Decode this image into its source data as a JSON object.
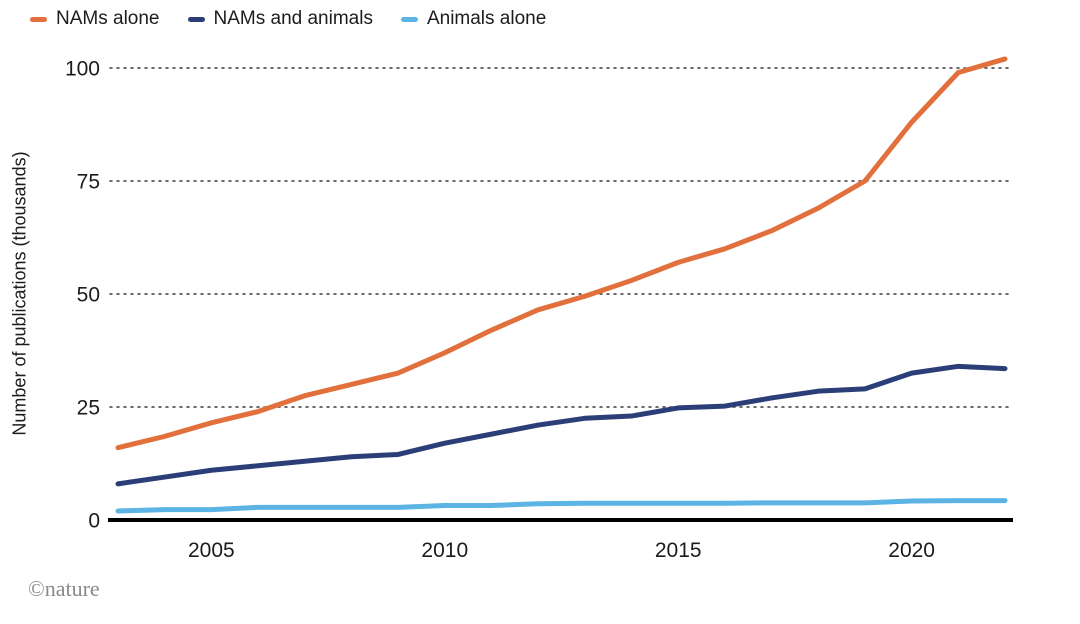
{
  "chart_data": {
    "type": "line",
    "title": "",
    "xlabel": "",
    "ylabel": "Number of publications (thousands)",
    "x": [
      2003,
      2004,
      2005,
      2006,
      2007,
      2008,
      2009,
      2010,
      2011,
      2012,
      2013,
      2014,
      2015,
      2016,
      2017,
      2018,
      2019,
      2020,
      2021,
      2022
    ],
    "series": [
      {
        "name": "NAMs alone",
        "color": "#e2703c",
        "values": [
          16,
          18.5,
          21.5,
          24,
          27.5,
          30,
          32.5,
          37,
          42,
          46.5,
          49.5,
          53,
          57,
          60,
          64,
          69,
          75,
          88,
          99,
          102
        ]
      },
      {
        "name": "NAMs and animals",
        "color": "#2c3e77",
        "values": [
          8,
          9.5,
          11,
          12,
          13,
          14,
          14.5,
          17,
          19,
          21,
          22.5,
          23,
          24.8,
          25.2,
          27,
          28.5,
          29,
          32.5,
          34,
          33.5
        ]
      },
      {
        "name": "Animals alone",
        "color": "#5cb4e4",
        "values": [
          2,
          2.3,
          2.3,
          2.8,
          2.8,
          2.8,
          2.8,
          3.2,
          3.2,
          3.6,
          3.7,
          3.7,
          3.7,
          3.7,
          3.8,
          3.8,
          3.8,
          4.2,
          4.3,
          4.3
        ]
      }
    ],
    "ylim": [
      0,
      100
    ],
    "yticks": [
      0,
      25,
      50,
      75,
      100
    ],
    "xticks": [
      2005,
      2010,
      2015,
      2020
    ],
    "grid": "dotted horizontal gridlines at y ticks, solid black x-axis",
    "legend_position": "top-left"
  },
  "footer": {
    "credit": "©nature"
  }
}
